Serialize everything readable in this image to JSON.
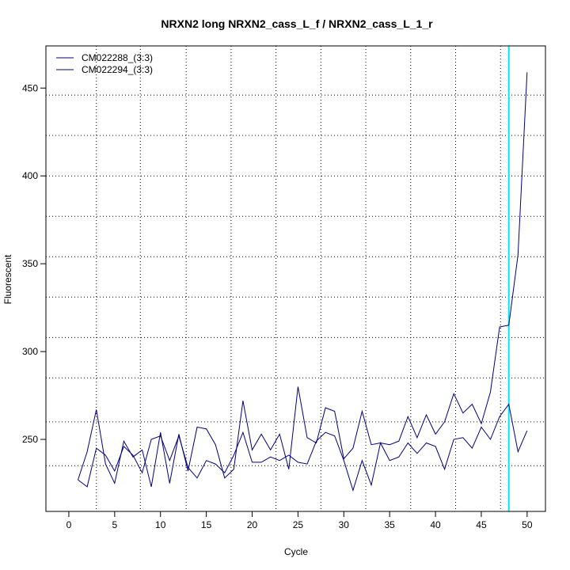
{
  "chart_data": {
    "type": "line",
    "title": "NRXN2 long NRXN2_cass_L_f / NRXN2_cass_L_1_r",
    "xlabel": "Cycle",
    "ylabel": "Fluorescent",
    "xlim": [
      -2.5,
      52
    ],
    "ylim": [
      209,
      474
    ],
    "x_ticks": [
      0,
      5,
      10,
      15,
      20,
      25,
      30,
      35,
      40,
      45,
      50
    ],
    "y_ticks": [
      250,
      300,
      350,
      400,
      450
    ],
    "v_gridlines": [
      3,
      7.8,
      12.8,
      17.7,
      22.6,
      27.5,
      32.4,
      37.3,
      42.2,
      47.1
    ],
    "h_gridlines": [
      235,
      260,
      285,
      308,
      331,
      354,
      377,
      400,
      423,
      446
    ],
    "threshold_x": 48,
    "threshold_color": "#00e5ee",
    "grid": true,
    "legend_position": "top-left",
    "line_color": "#000080",
    "x": [
      1,
      2,
      3,
      4,
      5,
      6,
      7,
      8,
      9,
      10,
      11,
      12,
      13,
      14,
      15,
      16,
      17,
      18,
      19,
      20,
      21,
      22,
      23,
      24,
      25,
      26,
      27,
      28,
      29,
      30,
      31,
      32,
      33,
      34,
      35,
      36,
      37,
      38,
      39,
      40,
      41,
      42,
      43,
      44,
      45,
      46,
      47,
      48,
      49,
      50
    ],
    "series": [
      {
        "name": "CM022288_(3:3)",
        "values": [
          227,
          243,
          267,
          236,
          225,
          249,
          240,
          244,
          223,
          254,
          225,
          253,
          232,
          257,
          256,
          247,
          228,
          233,
          272,
          244,
          253,
          244,
          253,
          233,
          280,
          251,
          248,
          268,
          266,
          239,
          245,
          266,
          247,
          248,
          247,
          249,
          263,
          251,
          264,
          253,
          260,
          276,
          265,
          270,
          259,
          277,
          314,
          315,
          355,
          459
        ]
      },
      {
        "name": "CM022294_(3:3)",
        "values": [
          227,
          223,
          245,
          241,
          232,
          246,
          241,
          231,
          250,
          252,
          238,
          252,
          234,
          228,
          238,
          236,
          231,
          241,
          254,
          237,
          237,
          240,
          238,
          241,
          237,
          236,
          249,
          254,
          252,
          238,
          221,
          238,
          224,
          248,
          238,
          240,
          248,
          242,
          248,
          246,
          233,
          250,
          251,
          245,
          257,
          250,
          263,
          270,
          243,
          255
        ]
      }
    ]
  }
}
